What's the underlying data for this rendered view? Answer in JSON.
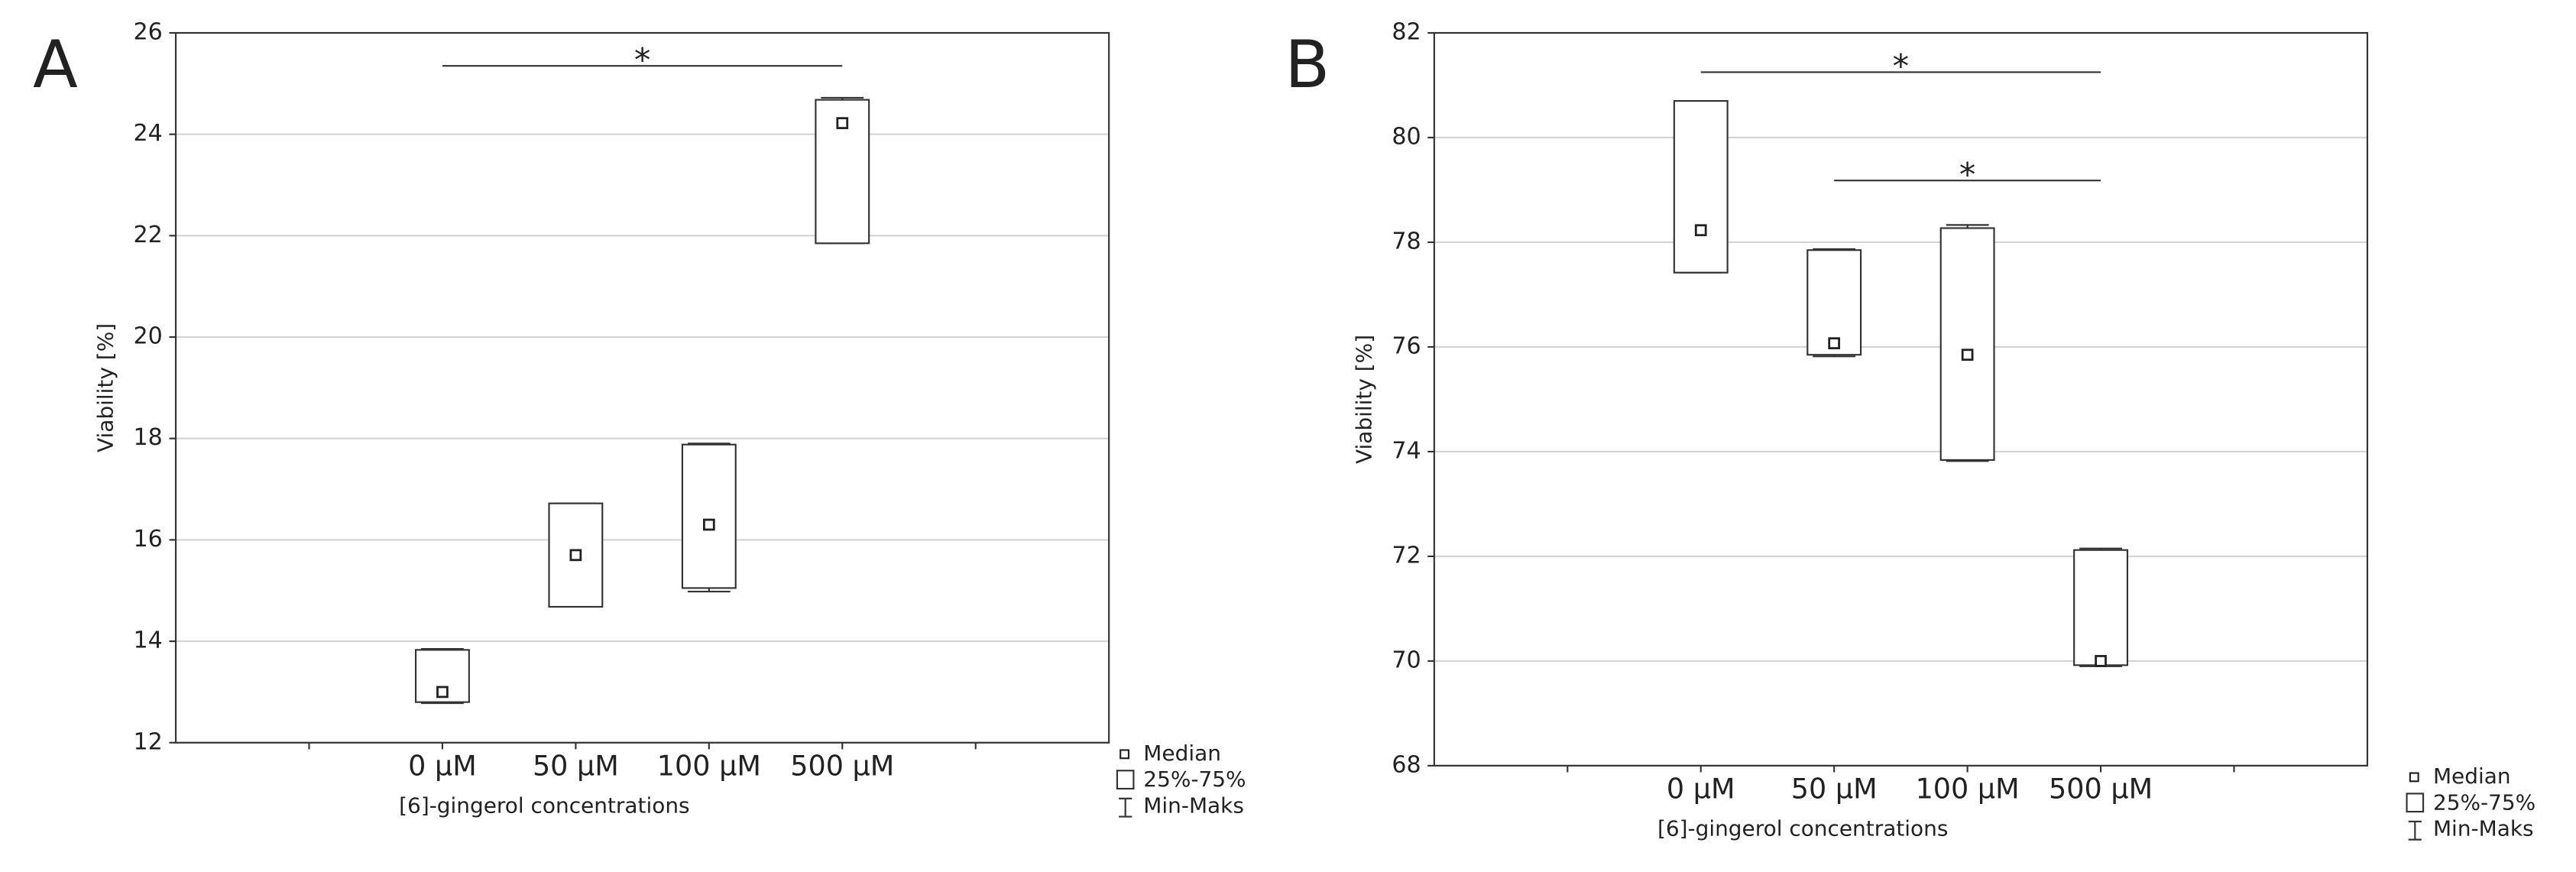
{
  "chart_data": [
    {
      "type": "box",
      "panel": "A",
      "ylabel": "Viability [%]",
      "xlabel": "[6]-gingerol concentrations",
      "categories": [
        "0 µM",
        "50 µM",
        "100 µM",
        "500 µM"
      ],
      "min": [
        12.78,
        14.68,
        14.98,
        21.85
      ],
      "q1": [
        12.8,
        14.68,
        15.05,
        21.85
      ],
      "median": [
        13.0,
        15.7,
        16.3,
        24.22
      ],
      "q3": [
        13.83,
        16.72,
        17.88,
        24.68
      ],
      "max": [
        13.85,
        16.72,
        17.9,
        24.72
      ],
      "ylim": [
        12,
        26
      ],
      "yticks": [
        12,
        14,
        16,
        18,
        20,
        22,
        24,
        26
      ],
      "grid": true,
      "significance": [
        {
          "from": "0 µM",
          "to": "500 µM",
          "y": 25.35,
          "label": "*"
        }
      ],
      "legend": [
        "Median",
        "25%-75%",
        "Min-Maks"
      ]
    },
    {
      "type": "box",
      "panel": "B",
      "ylabel": "Viability [%]",
      "xlabel": "[6]-gingerol concentrations",
      "categories": [
        "0 µM",
        "50 µM",
        "100 µM",
        "500 µM"
      ],
      "min": [
        77.42,
        75.82,
        73.82,
        69.9
      ],
      "q1": [
        77.42,
        75.85,
        73.84,
        69.92
      ],
      "median": [
        78.23,
        76.07,
        75.85,
        70.0
      ],
      "q3": [
        80.7,
        77.85,
        78.27,
        72.12
      ],
      "max": [
        80.7,
        77.87,
        78.33,
        72.15
      ],
      "ylim": [
        68,
        82
      ],
      "yticks": [
        68,
        70,
        72,
        74,
        76,
        78,
        80,
        82
      ],
      "grid": true,
      "significance": [
        {
          "from": "0 µM",
          "to": "500 µM",
          "y": 81.25,
          "label": "*"
        },
        {
          "from": "50 µM",
          "to": "500 µM",
          "y": 79.18,
          "label": "*"
        }
      ],
      "legend": [
        "Median",
        "25%-75%",
        "Min-Maks"
      ]
    }
  ]
}
